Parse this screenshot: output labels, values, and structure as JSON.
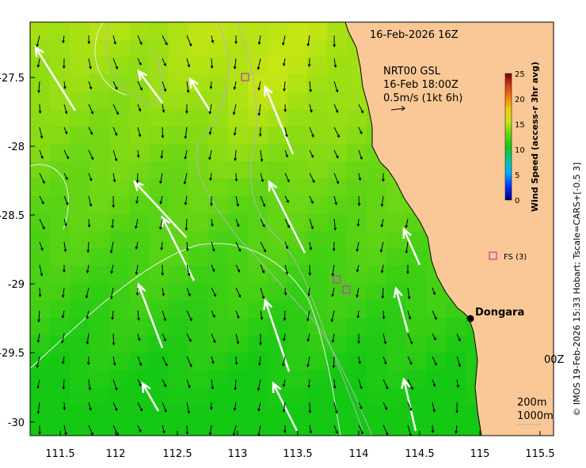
{
  "map": {
    "timestamp": "16-Feb-2026 16Z",
    "overlay_title": "NRT00 GSL",
    "overlay_time": "16-Feb 18:00Z",
    "overlay_scale": "0.5m/s (1kt 6h)",
    "town_label": "Dongara",
    "station_label": "FS (3)",
    "partial_label": "00Z",
    "depth_label_1": "200m",
    "depth_label_2": "1000m",
    "credit": "© IMOS 19-Feb-2026 15:33 Hobart; Tscale=CARS+[-0.5 3]",
    "x_ticks": [
      "111.5",
      "112",
      "112.5",
      "113",
      "113.5",
      "114",
      "114.5",
      "115",
      "115.5"
    ],
    "y_ticks": [
      "-27.5",
      "-28",
      "-28.5",
      "-29",
      "-29.5",
      "-30"
    ],
    "colorbar": {
      "title": "Wind Speed (access-r 3hr avg)",
      "ticks": [
        "25",
        "20",
        "15",
        "10",
        "5",
        "0"
      ],
      "min": 0,
      "max": 25
    },
    "colors": {
      "land": "#fac896",
      "ocean_high": "#c8e614",
      "ocean_low": "#14c814",
      "marker": "#c832c8"
    }
  }
}
